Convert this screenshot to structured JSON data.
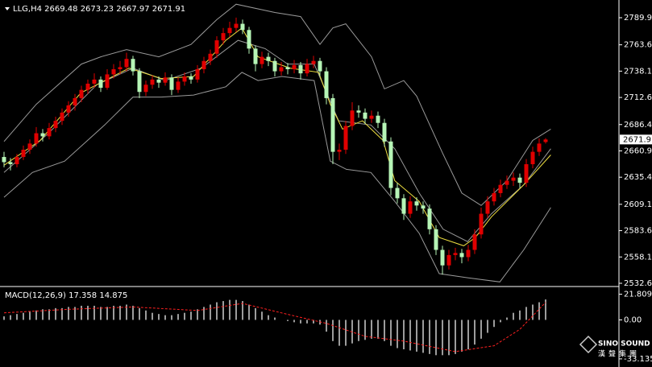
{
  "chart_data": {
    "type": "candlestick",
    "symbol": "LLG,H4",
    "candles": [
      [
        2655,
        2660,
        2645,
        2650
      ],
      [
        2650,
        2654,
        2642,
        2648
      ],
      [
        2648,
        2658,
        2645,
        2655
      ],
      [
        2655,
        2666,
        2652,
        2662
      ],
      [
        2662,
        2672,
        2658,
        2668
      ],
      [
        2668,
        2684,
        2665,
        2678
      ],
      [
        2678,
        2682,
        2670,
        2675
      ],
      [
        2675,
        2688,
        2672,
        2683
      ],
      [
        2683,
        2694,
        2679,
        2690
      ],
      [
        2690,
        2702,
        2686,
        2698
      ],
      [
        2698,
        2709,
        2694,
        2705
      ],
      [
        2705,
        2716,
        2700,
        2712
      ],
      [
        2712,
        2724,
        2708,
        2720
      ],
      [
        2720,
        2730,
        2716,
        2726
      ],
      [
        2726,
        2736,
        2722,
        2730
      ],
      [
        2730,
        2733,
        2718,
        2722
      ],
      [
        2722,
        2740,
        2720,
        2735
      ],
      [
        2735,
        2745,
        2731,
        2740
      ],
      [
        2740,
        2748,
        2735,
        2742
      ],
      [
        2742,
        2756,
        2738,
        2750
      ],
      [
        2750,
        2753,
        2734,
        2738
      ],
      [
        2738,
        2741,
        2712,
        2718
      ],
      [
        2718,
        2729,
        2714,
        2725
      ],
      [
        2725,
        2734,
        2721,
        2730
      ],
      [
        2730,
        2733,
        2722,
        2727
      ],
      [
        2727,
        2737,
        2724,
        2732
      ],
      [
        2732,
        2735,
        2715,
        2720
      ],
      [
        2720,
        2732,
        2717,
        2728
      ],
      [
        2728,
        2737,
        2724,
        2733
      ],
      [
        2733,
        2736,
        2726,
        2730
      ],
      [
        2730,
        2744,
        2727,
        2740
      ],
      [
        2740,
        2752,
        2736,
        2748
      ],
      [
        2748,
        2759,
        2744,
        2755
      ],
      [
        2755,
        2772,
        2751,
        2768
      ],
      [
        2768,
        2780,
        2764,
        2775
      ],
      [
        2775,
        2786,
        2771,
        2780
      ],
      [
        2780,
        2790,
        2776,
        2784
      ],
      [
        2784,
        2788,
        2774,
        2778
      ],
      [
        2778,
        2781,
        2755,
        2760
      ],
      [
        2760,
        2763,
        2738,
        2745
      ],
      [
        2745,
        2757,
        2741,
        2752
      ],
      [
        2752,
        2756,
        2743,
        2748
      ],
      [
        2748,
        2751,
        2733,
        2738
      ],
      [
        2738,
        2747,
        2734,
        2742
      ],
      [
        2742,
        2746,
        2735,
        2740
      ],
      [
        2740,
        2749,
        2736,
        2744
      ],
      [
        2744,
        2747,
        2730,
        2736
      ],
      [
        2736,
        2750,
        2733,
        2745
      ],
      [
        2745,
        2753,
        2741,
        2748
      ],
      [
        2748,
        2751,
        2733,
        2738
      ],
      [
        2738,
        2742,
        2706,
        2712
      ],
      [
        2712,
        2716,
        2648,
        2660
      ],
      [
        2660,
        2668,
        2652,
        2662
      ],
      [
        2662,
        2690,
        2658,
        2685
      ],
      [
        2685,
        2708,
        2681,
        2700
      ],
      [
        2700,
        2705,
        2693,
        2698
      ],
      [
        2698,
        2702,
        2687,
        2692
      ],
      [
        2692,
        2700,
        2688,
        2695
      ],
      [
        2695,
        2699,
        2683,
        2688
      ],
      [
        2688,
        2692,
        2665,
        2670
      ],
      [
        2670,
        2674,
        2618,
        2625
      ],
      [
        2625,
        2630,
        2610,
        2615
      ],
      [
        2615,
        2619,
        2594,
        2600
      ],
      [
        2600,
        2617,
        2596,
        2612
      ],
      [
        2612,
        2616,
        2603,
        2608
      ],
      [
        2608,
        2612,
        2600,
        2605
      ],
      [
        2605,
        2609,
        2580,
        2585
      ],
      [
        2585,
        2589,
        2560,
        2565
      ],
      [
        2565,
        2569,
        2541,
        2550
      ],
      [
        2550,
        2565,
        2546,
        2560
      ],
      [
        2560,
        2567,
        2555,
        2562
      ],
      [
        2562,
        2566,
        2552,
        2558
      ],
      [
        2558,
        2570,
        2554,
        2565
      ],
      [
        2565,
        2585,
        2561,
        2580
      ],
      [
        2580,
        2606,
        2576,
        2600
      ],
      [
        2600,
        2617,
        2596,
        2612
      ],
      [
        2612,
        2625,
        2608,
        2620
      ],
      [
        2620,
        2633,
        2616,
        2628
      ],
      [
        2628,
        2637,
        2624,
        2632
      ],
      [
        2632,
        2640,
        2627,
        2635
      ],
      [
        2635,
        2639,
        2625,
        2630
      ],
      [
        2630,
        2653,
        2626,
        2648
      ],
      [
        2648,
        2665,
        2644,
        2660
      ],
      [
        2660,
        2673,
        2656,
        2668
      ],
      [
        2669.48,
        2673.23,
        2667.97,
        2671.91
      ]
    ],
    "up_color": "#e00000",
    "down_color": "#b6f5b6",
    "ylim": [
      2530.3,
      2807.05
    ],
    "yticks": [
      {
        "value": 2789.9,
        "label": "2789.90"
      },
      2763.65,
      2738.15,
      2712.65,
      {
        "value": 2686.4,
        "label": "2686.40"
      },
      {
        "value": 2660.9,
        "label": "2660.90"
      },
      {
        "value": 2635.4,
        "label": "2635.40"
      },
      2609.15,
      2583.65,
      2558.15,
      2532.65
    ],
    "lines": [
      {
        "color": "#9a9a9a",
        "x": [
          0,
          5,
          12,
          15,
          19,
          24,
          29,
          33,
          36,
          42,
          46,
          49,
          51,
          53,
          57,
          59,
          62,
          64,
          68,
          71,
          74,
          78,
          82,
          84.8
        ],
        "values": [
          2670,
          2706,
          2745,
          2752,
          2759,
          2752,
          2764,
          2788,
          2803,
          2795,
          2791,
          2764,
          2780,
          2784,
          2752,
          2721,
          2729,
          2714,
          2659,
          2620,
          2608,
          2632,
          2671,
          2682
        ]
      },
      {
        "color": "#9a9a9a",
        "x": [
          0,
          6.9,
          14.4,
          20,
          25,
          30.6,
          36.3,
          40.5,
          44,
          48.1,
          51.9,
          56.9,
          60.6,
          64.4,
          68.1,
          71.9,
          75.6,
          80.6,
          84.8
        ],
        "values": [
          2640,
          2678,
          2725,
          2741,
          2729,
          2741,
          2768,
          2760,
          2745,
          2745,
          2690,
          2686,
          2663,
          2620,
          2585,
          2573,
          2600,
          2628,
          2663
        ]
      },
      {
        "color": "#9a9a9a",
        "x": [
          0,
          4.4,
          9.4,
          15.6,
          20,
          24.4,
          29.4,
          34.4,
          36.9,
          39.4,
          43.1,
          48.1,
          50.6,
          53.1,
          56.9,
          60.6,
          64.4,
          67.5,
          71.9,
          76.9,
          80.6,
          84.8
        ],
        "values": [
          2616,
          2640,
          2651,
          2686,
          2713,
          2713,
          2715,
          2723,
          2737,
          2729,
          2733,
          2729,
          2651,
          2643,
          2640,
          2612,
          2581,
          2542,
          2538,
          2534,
          2565,
          2606
        ]
      },
      {
        "color": "#f0e040",
        "x": [
          0,
          5.6,
          11.9,
          19.4,
          24.4,
          29.4,
          34.4,
          36.9,
          39.4,
          44.4,
          48.8,
          50.6,
          52.5,
          55.6,
          58.8,
          60.6,
          64.4,
          67.5,
          71.3,
          73.1,
          75.6,
          80.6,
          84.8
        ],
        "values": [
          2647,
          2671,
          2717,
          2741,
          2731,
          2733,
          2768,
          2780,
          2752,
          2741,
          2737,
          2706,
          2682,
          2690,
          2671,
          2632,
          2612,
          2577,
          2569,
          2577,
          2597,
          2628,
          2657
        ]
      }
    ],
    "macd": {
      "label": "MACD(12,26,9)",
      "histogram": [
        3,
        4,
        5,
        6,
        7,
        8,
        9,
        9,
        10,
        10,
        11,
        11,
        12,
        12,
        12,
        11,
        11,
        12,
        12,
        13,
        12,
        10,
        8,
        6,
        5,
        4,
        4,
        5,
        6,
        7,
        9,
        11,
        13,
        15,
        16,
        17,
        17,
        16,
        13,
        10,
        7,
        4,
        2,
        0,
        -1,
        -2,
        -3,
        -3,
        -3,
        -4,
        -10,
        -18,
        -22,
        -22,
        -20,
        -18,
        -17,
        -16,
        -16,
        -18,
        -22,
        -24,
        -25,
        -26,
        -27,
        -28,
        -29,
        -30,
        -30,
        -30,
        -29,
        -27,
        -25,
        -21,
        -16,
        -11,
        -6,
        -2,
        2,
        6,
        8,
        11,
        13,
        15,
        17.358
      ],
      "signal_x": [
        0,
        10,
        20,
        30,
        37,
        43,
        50,
        56,
        62,
        70,
        76,
        80,
        84
      ],
      "signal": [
        6,
        9,
        11,
        8,
        14,
        6,
        -3,
        -14,
        -18,
        -27,
        -22,
        -8,
        14.875
      ],
      "hist_color": "#d0d0d0",
      "signal_color": "#ff2020",
      "ylim": [
        -38,
        27
      ],
      "yticks": [
        21.809,
        {
          "value": 0,
          "label": "0.00"
        },
        -33.135
      ]
    }
  },
  "watermark": {
    "brand": "SINO SOUND",
    "chinese": "漢聲集團"
  }
}
